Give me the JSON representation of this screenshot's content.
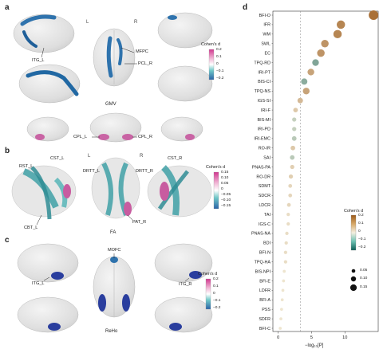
{
  "panel_a": {
    "letter": "a",
    "l_label": "L",
    "r_label": "R",
    "caption": "GMV",
    "regions": {
      "mfpc": "MFPC",
      "itg_l": "ITG_L",
      "pcl_r": "PCL_R",
      "cpl_l": "CPL_L",
      "cpl_r": "CPL_R"
    },
    "colorbar": {
      "title": "Cohen's d",
      "ticks": [
        "0.2",
        "0.1",
        "0",
        "−0.1",
        "−0.2"
      ]
    }
  },
  "panel_b": {
    "letter": "b",
    "l_label": "L",
    "r_label": "R",
    "caption": "FA",
    "regions": {
      "rst_l": "RST_L",
      "cst_l": "CST_L",
      "drtt_l": "DRTT_L",
      "drtt_r": "DRTT_R",
      "cst_r": "CST_R",
      "cbt_l": "CBT_L",
      "pat_r": "PAT_R"
    },
    "colorbar": {
      "title": "Cohen's d",
      "ticks": [
        "0.15",
        "0.10",
        "0.05",
        "0",
        "−0.05",
        "−0.10",
        "−0.15"
      ]
    }
  },
  "panel_c": {
    "letter": "c",
    "caption": "ReHo",
    "regions": {
      "mofc": "MOFC",
      "itg_l": "ITG_L",
      "itg_r": "ITG_R"
    },
    "colorbar": {
      "title": "Cohen's d",
      "ticks": [
        "0.2",
        "0.1",
        "0",
        "−0.1",
        "−0.2"
      ]
    }
  },
  "panel_d": {
    "letter": "d",
    "colors": {
      "positive": "#9c5a1a",
      "mid": "#f2ecd8",
      "negative": "#0f5e57"
    },
    "colorbar": {
      "title": "Cohen's d",
      "ticks": [
        "0.2",
        "0.1",
        "0",
        "−0.1",
        "−0.2"
      ]
    },
    "size_legend": [
      "0.05",
      "0.10",
      "0.15"
    ]
  },
  "chart_data": {
    "type": "scatter",
    "xlabel": "−log₁₀[P]",
    "xticks": [
      "0",
      "5",
      "10"
    ],
    "xlim": [
      -0.8,
      15
    ],
    "threshold": 3.3,
    "categories": [
      "BFI-O",
      "IFR",
      "WM",
      "SWL",
      "EC",
      "TPQ-RD",
      "IRI-PT",
      "BIS-CI",
      "TPQ-NS",
      "IGS-SI",
      "IRI-F",
      "BIS-MI",
      "IRI-PD",
      "IRI-EMC",
      "RO-IR",
      "SAI",
      "PNAS-PA",
      "RO-DR",
      "SDMT",
      "SDCR",
      "LDCR",
      "TAI",
      "IGS-C",
      "PNAS-NA",
      "BDI",
      "BFI-N",
      "TPQ-HA",
      "BIS-NPI",
      "BFI-E",
      "LDFR",
      "BFI-A",
      "PSS",
      "SDFR",
      "BFI-C"
    ],
    "x": [
      14.3,
      9.4,
      8.9,
      7.0,
      6.4,
      5.6,
      4.9,
      3.9,
      4.2,
      3.3,
      2.6,
      2.4,
      2.4,
      2.4,
      2.2,
      2.1,
      2.1,
      1.9,
      1.8,
      1.8,
      1.6,
      1.5,
      1.5,
      1.3,
      1.2,
      1.1,
      1.1,
      0.9,
      0.8,
      0.7,
      0.6,
      0.5,
      0.4,
      0.3
    ],
    "d": [
      0.17,
      0.14,
      0.14,
      0.12,
      0.12,
      -0.1,
      0.1,
      -0.09,
      0.1,
      0.07,
      0.05,
      -0.04,
      -0.04,
      -0.05,
      0.05,
      -0.05,
      0.04,
      0.04,
      0.03,
      0.03,
      0.03,
      0.02,
      0.02,
      0.02,
      0.02,
      0.02,
      0.02,
      0.01,
      0.01,
      0.01,
      0.01,
      0.01,
      0.01,
      0.01
    ]
  }
}
